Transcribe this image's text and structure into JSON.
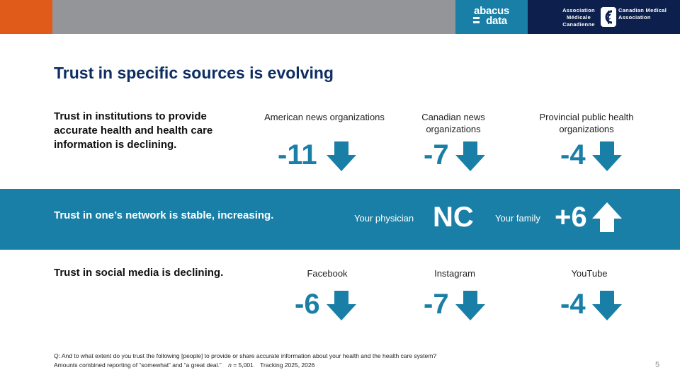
{
  "header": {
    "abacus_line1": "abacus",
    "abacus_line2": "data",
    "cma_fr": "Association Médicale Canadienne",
    "cma_en": "Canadian Medical Association"
  },
  "title": "Trust in specific sources is evolving",
  "rows": {
    "institutions": {
      "label": "Trust in institutions to provide accurate health and health care information is declining.",
      "items": [
        {
          "head": "American news organizations",
          "value": "-11",
          "direction": "down"
        },
        {
          "head": "Canadian news organizations",
          "value": "-7",
          "direction": "down"
        },
        {
          "head": "Provincial public health organizations",
          "value": "-4",
          "direction": "down"
        }
      ]
    },
    "network": {
      "label": "Trust in one’s network is stable, increasing.",
      "items": [
        {
          "head": "Your physician",
          "value": "NC",
          "direction": "none"
        },
        {
          "head": "Your family",
          "value": "+6",
          "direction": "up"
        }
      ]
    },
    "social": {
      "label": "Trust in social media is declining.",
      "items": [
        {
          "head": "Facebook",
          "value": "-6",
          "direction": "down"
        },
        {
          "head": "Instagram",
          "value": "-7",
          "direction": "down"
        },
        {
          "head": "YouTube",
          "value": "-4",
          "direction": "down"
        }
      ]
    }
  },
  "footnote": {
    "line1": "Q: And to what extent do you trust the following [people] to provide or share accurate information about your health and the health care system?",
    "line2_a": "Amounts combined reporting of “somewhat” and “a great deal.”",
    "line2_n": "n",
    "line2_b": " = 5,001    Tracking 2025, 2026"
  },
  "page_number": "5",
  "colors": {
    "accent": "#1a7fa6",
    "title": "#0d2d63",
    "orange": "#e05a1a",
    "navy": "#0d1f4c"
  },
  "icons": {
    "down": "arrow-down-icon",
    "up": "arrow-up-icon"
  }
}
